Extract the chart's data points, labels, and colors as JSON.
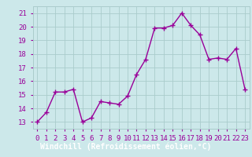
{
  "x": [
    0,
    1,
    2,
    3,
    4,
    5,
    6,
    7,
    8,
    9,
    10,
    11,
    12,
    13,
    14,
    15,
    16,
    17,
    18,
    19,
    20,
    21,
    22,
    23
  ],
  "y": [
    13.0,
    13.7,
    15.2,
    15.2,
    15.4,
    13.0,
    13.3,
    14.5,
    14.4,
    14.3,
    14.9,
    16.5,
    17.6,
    19.9,
    19.9,
    20.1,
    21.0,
    20.1,
    19.4,
    17.6,
    17.7,
    17.6,
    18.4,
    15.4
  ],
  "line_color": "#990099",
  "marker": "+",
  "marker_size": 4,
  "bg_color": "#cce8ea",
  "grid_color": "#aacccc",
  "xlabel": "Windchill (Refroidissement éolien,°C)",
  "xlabel_color": "#ffffff",
  "xlabel_bg": "#990099",
  "ylabel_ticks": [
    13,
    14,
    15,
    16,
    17,
    18,
    19,
    20,
    21
  ],
  "xtick_labels": [
    "0",
    "1",
    "2",
    "3",
    "4",
    "5",
    "6",
    "7",
    "8",
    "9",
    "10",
    "11",
    "12",
    "13",
    "14",
    "15",
    "16",
    "17",
    "18",
    "19",
    "20",
    "21",
    "22",
    "23"
  ],
  "ylim": [
    12.5,
    21.5
  ],
  "xlim": [
    -0.5,
    23.5
  ],
  "tick_color": "#990099",
  "tick_fontsize": 6.5,
  "xlabel_fontsize": 7.0,
  "linewidth": 1.0
}
